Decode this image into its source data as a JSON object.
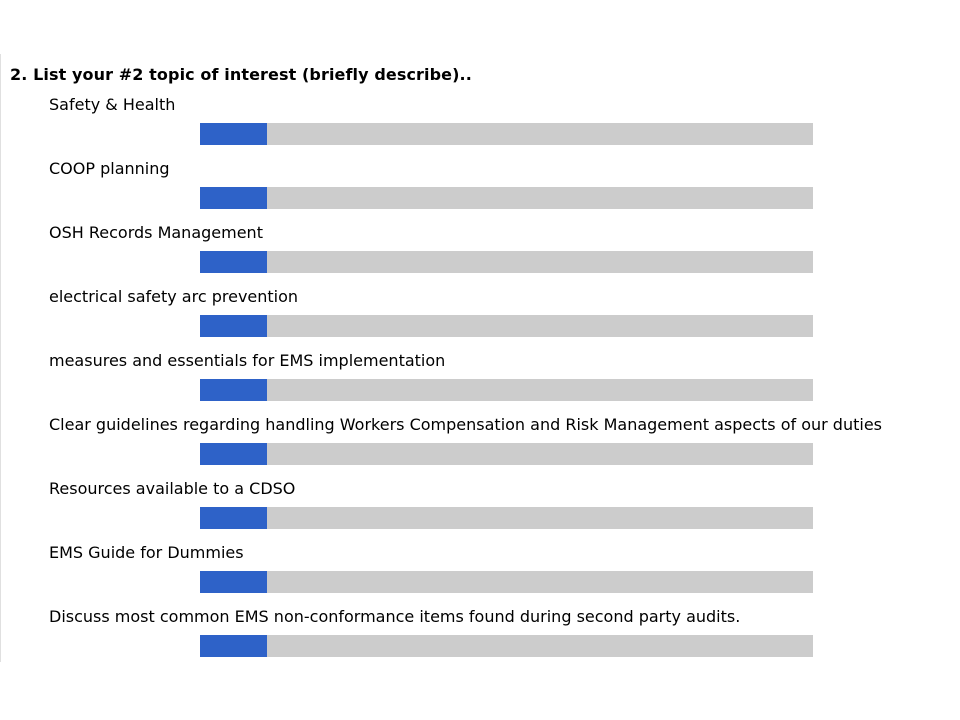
{
  "question": {
    "title": "2. List your #2 topic of interest (briefly describe).."
  },
  "colors": {
    "bar_fill": "#2e62c8",
    "bar_track": "#cccccc"
  },
  "chart_data": {
    "type": "bar",
    "orientation": "horizontal",
    "title": "2. List your #2 topic of interest (briefly describe)..",
    "categories": [
      "Safety & Health",
      "COOP planning",
      "OSH Records Management",
      "electrical safety arc prevention",
      "measures and essentials for EMS implementation",
      "Clear guidelines regarding handling Workers Compensation and Risk Management aspects of our duties",
      "Resources available to a CDSO",
      "EMS Guide for Dummies",
      "Discuss most common EMS non-conformance items found during second party audits."
    ],
    "values": [
      0.11,
      0.11,
      0.11,
      0.11,
      0.11,
      0.11,
      0.11,
      0.11,
      0.11
    ],
    "value_unit": "fraction of bar",
    "xlim": [
      0,
      1
    ],
    "grid": false,
    "legend": "none"
  }
}
